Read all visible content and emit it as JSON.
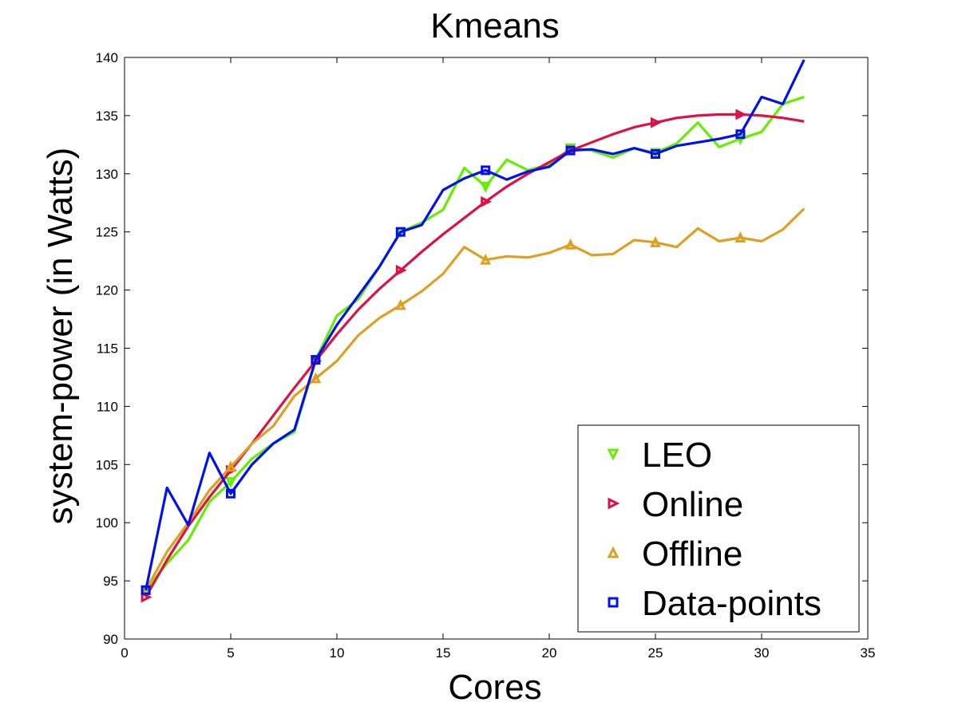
{
  "chart_data": {
    "type": "line",
    "title": "Kmeans",
    "xlabel": "Cores",
    "ylabel": "system-power (in Watts)",
    "xlim": [
      0,
      35
    ],
    "ylim": [
      90,
      140
    ],
    "xticks": [
      0,
      5,
      10,
      15,
      20,
      25,
      30,
      35
    ],
    "yticks": [
      90,
      95,
      100,
      105,
      110,
      115,
      120,
      125,
      130,
      135,
      140
    ],
    "grid": false,
    "legend_position": "bottom-right",
    "series": [
      {
        "name": "LEO",
        "color": "#66ee00",
        "marker": "triangle-down",
        "marker_every": 4,
        "x": [
          1,
          2,
          3,
          4,
          5,
          6,
          7,
          8,
          9,
          10,
          11,
          12,
          13,
          14,
          15,
          16,
          17,
          18,
          19,
          20,
          21,
          22,
          23,
          24,
          25,
          26,
          27,
          28,
          29,
          30,
          31,
          32
        ],
        "y": [
          94.2,
          96.5,
          98.5,
          101.8,
          103.5,
          105.5,
          106.8,
          107.8,
          114.0,
          117.8,
          119.2,
          122.0,
          125.0,
          125.8,
          126.9,
          130.5,
          128.9,
          131.2,
          130.3,
          130.8,
          132.2,
          132.0,
          131.4,
          132.2,
          131.8,
          132.6,
          134.4,
          132.3,
          133.0,
          133.6,
          136.0,
          136.6
        ]
      },
      {
        "name": "Online",
        "color": "#dd1144",
        "marker": "triangle-right",
        "marker_every": 4,
        "x": [
          1,
          2,
          3,
          4,
          5,
          6,
          7,
          8,
          9,
          10,
          11,
          12,
          13,
          14,
          15,
          16,
          17,
          18,
          19,
          20,
          21,
          22,
          23,
          24,
          25,
          26,
          27,
          28,
          29,
          30,
          31,
          32
        ],
        "y": [
          93.6,
          96.8,
          99.7,
          102.2,
          104.5,
          106.8,
          109.2,
          111.6,
          113.9,
          116.2,
          118.3,
          120.1,
          121.7,
          123.3,
          124.8,
          126.2,
          127.6,
          128.9,
          130.0,
          131.0,
          132.0,
          132.7,
          133.4,
          134.0,
          134.4,
          134.8,
          135.0,
          135.1,
          135.1,
          135.0,
          134.8,
          134.5
        ]
      },
      {
        "name": "Offline",
        "color": "#dda020",
        "marker": "triangle-up",
        "marker_every": 4,
        "x": [
          1,
          2,
          3,
          4,
          5,
          6,
          7,
          8,
          9,
          10,
          11,
          12,
          13,
          14,
          15,
          16,
          17,
          18,
          19,
          20,
          21,
          22,
          23,
          24,
          25,
          26,
          27,
          28,
          29,
          30,
          31,
          32
        ],
        "y": [
          94.2,
          97.5,
          100.0,
          102.8,
          104.8,
          106.8,
          108.3,
          110.9,
          112.4,
          113.9,
          116.1,
          117.6,
          118.7,
          119.9,
          121.4,
          123.7,
          122.6,
          122.9,
          122.8,
          123.2,
          123.9,
          123.0,
          123.1,
          124.3,
          124.1,
          123.7,
          125.3,
          124.2,
          124.5,
          124.2,
          125.2,
          127.0
        ]
      },
      {
        "name": "Data-points",
        "color": "#0011ee",
        "marker": "square",
        "marker_every": 4,
        "x": [
          1,
          2,
          3,
          4,
          5,
          6,
          7,
          8,
          9,
          10,
          11,
          12,
          13,
          14,
          15,
          16,
          17,
          18,
          19,
          20,
          21,
          22,
          23,
          24,
          25,
          26,
          27,
          28,
          29,
          30,
          31,
          32
        ],
        "y": [
          94.2,
          103.0,
          99.8,
          106.0,
          102.5,
          105.0,
          106.8,
          108.0,
          114.0,
          117.0,
          119.5,
          122.0,
          125.0,
          125.6,
          128.6,
          129.6,
          130.3,
          129.5,
          130.2,
          130.6,
          132.0,
          132.1,
          131.7,
          132.2,
          131.7,
          132.4,
          132.7,
          133.0,
          133.4,
          136.6,
          136.0,
          139.8
        ]
      }
    ]
  }
}
